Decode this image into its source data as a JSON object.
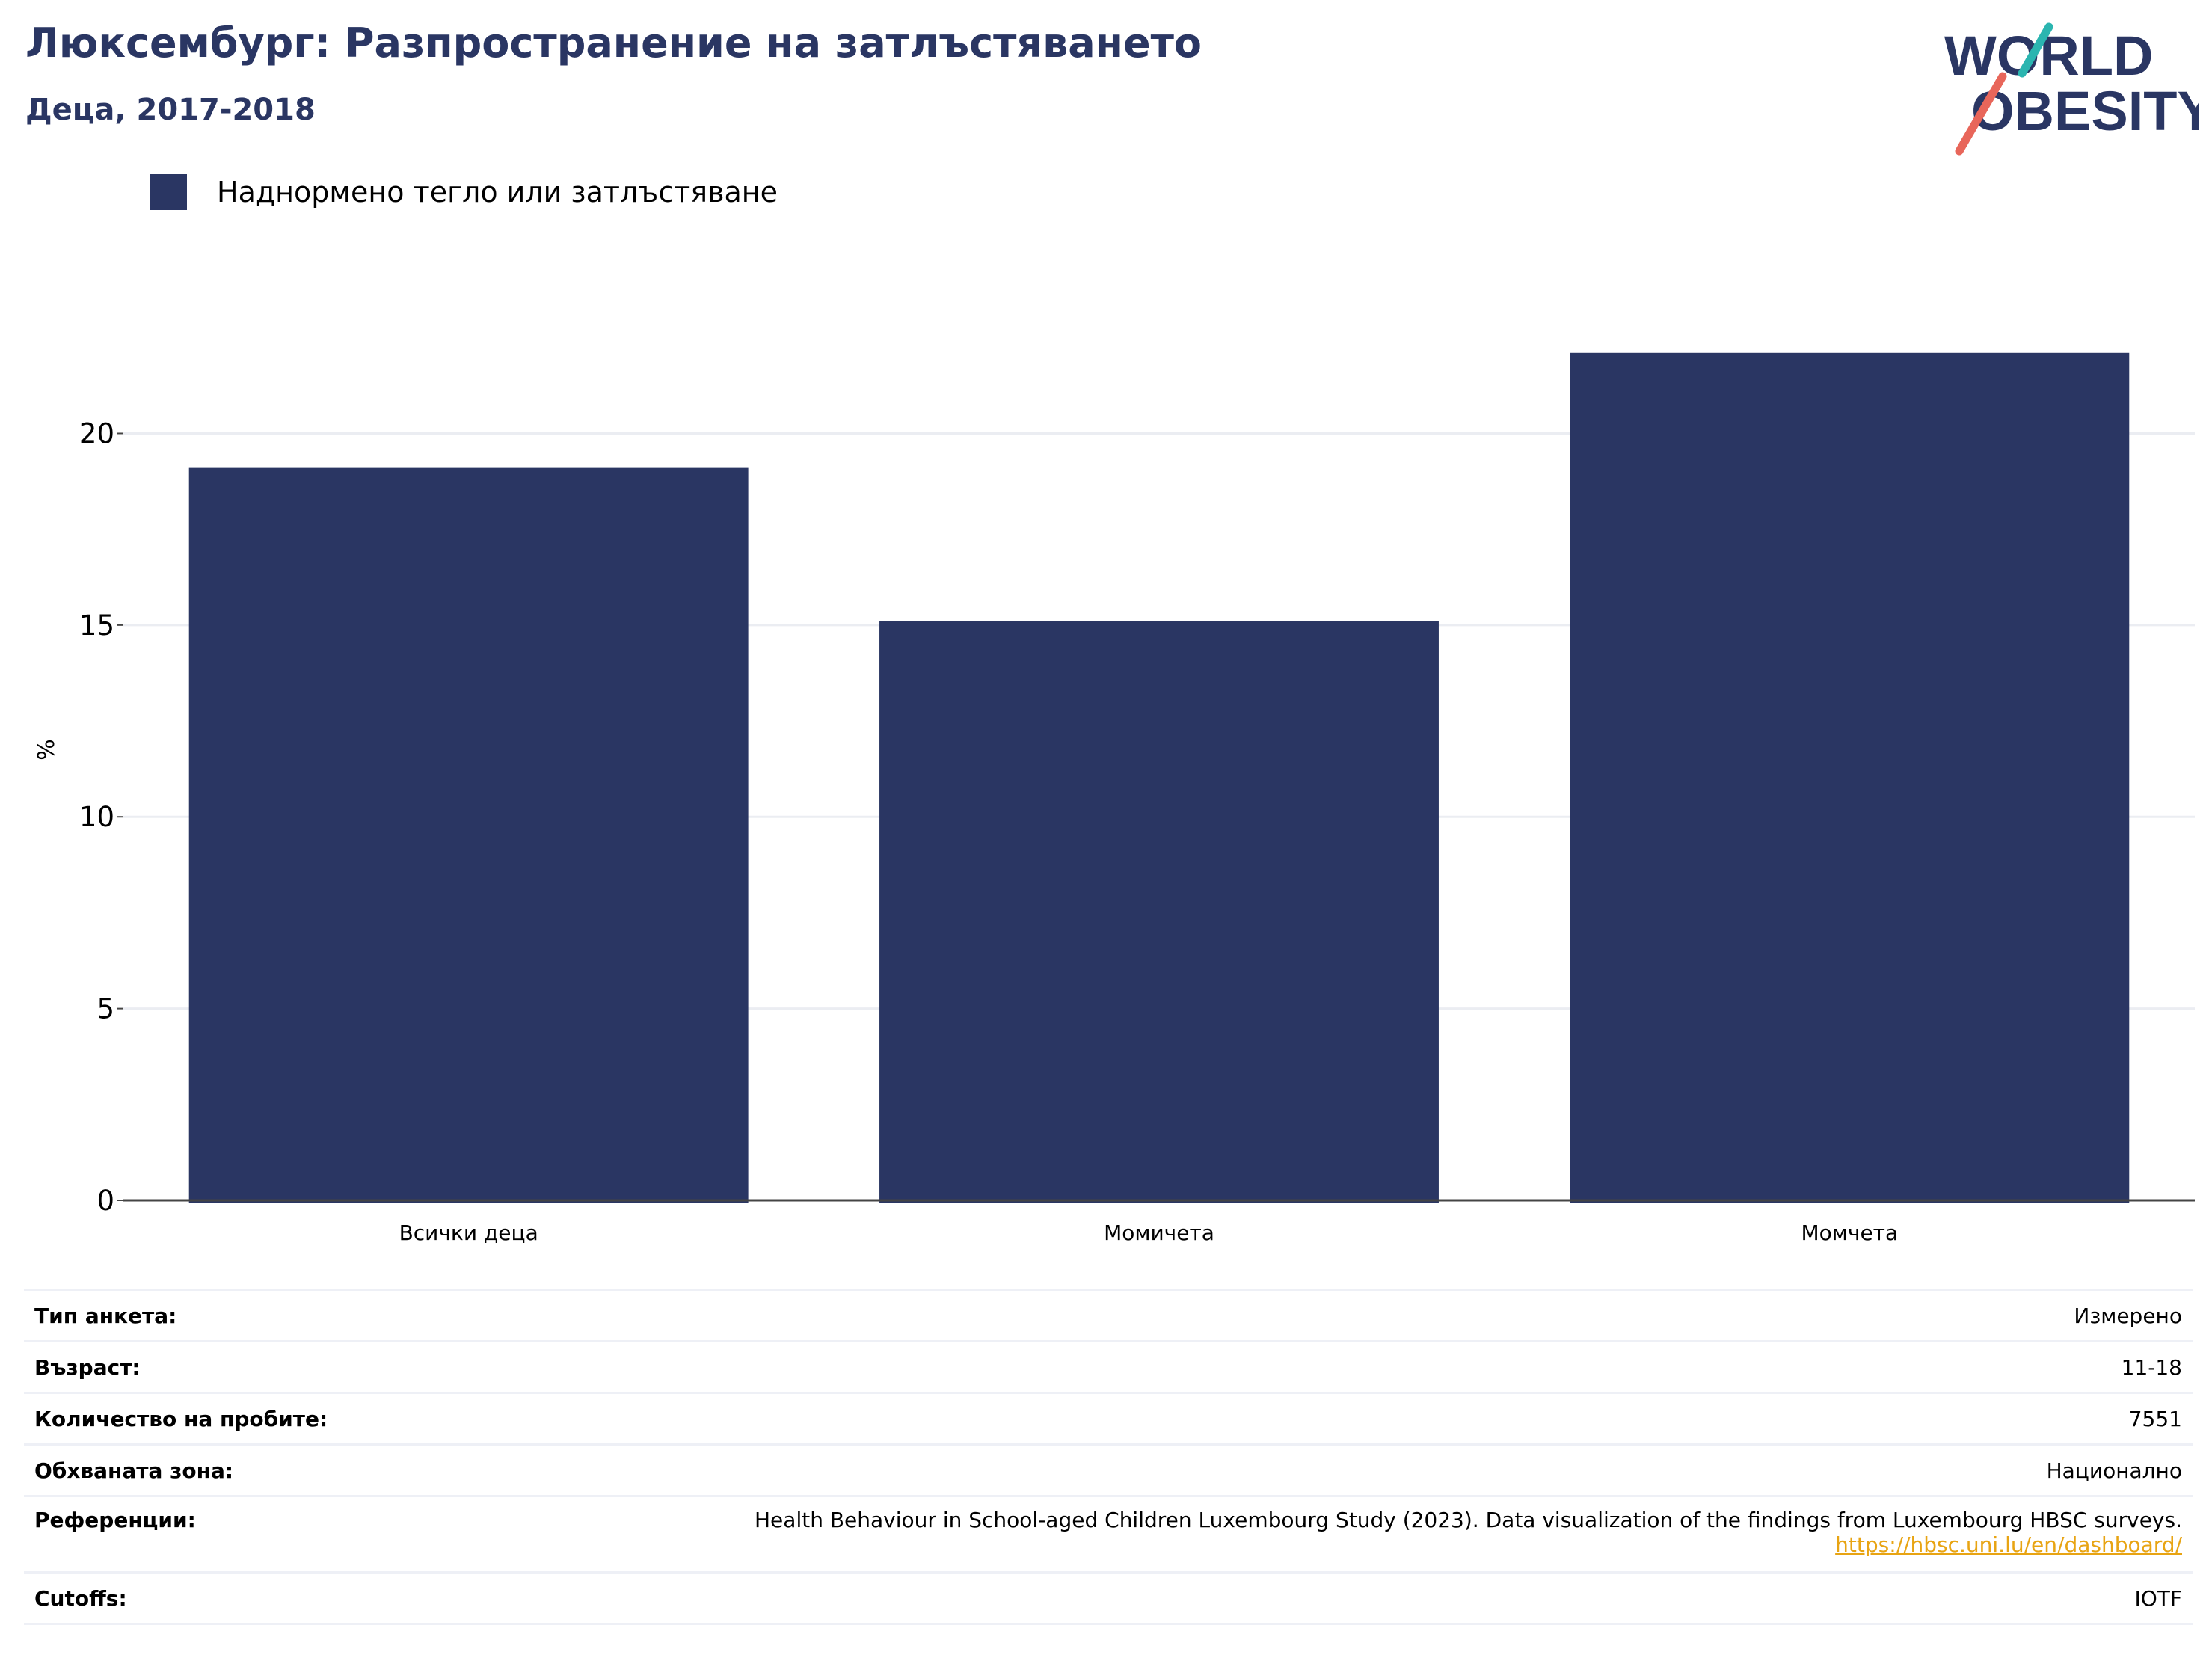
{
  "header": {
    "title": "Люксембург: Разпространение на затлъстяването",
    "subtitle": "Деца, 2017-2018"
  },
  "logo": {
    "line1": "WORLD",
    "line2": "OBESITY"
  },
  "legend": {
    "items": [
      {
        "label": "Наднормено тегло или затлъстяване",
        "color": "#2a3663"
      }
    ]
  },
  "chart_data": {
    "type": "bar",
    "categories": [
      "Всички деца",
      "Момичета",
      "Момчета"
    ],
    "series": [
      {
        "name": "Наднормено тегло или затлъстяване",
        "values": [
          19.1,
          15.1,
          22.1
        ],
        "color": "#2a3663"
      }
    ],
    "ylabel": "%",
    "ylim": [
      0,
      23.5
    ],
    "yticks": [
      0,
      5,
      10,
      15,
      20
    ],
    "grid": true,
    "legend_position": "top-left"
  },
  "meta": [
    {
      "key": "Тип анкета:",
      "value": "Измерено"
    },
    {
      "key": "Възраст:",
      "value": "11-18"
    },
    {
      "key": "Количество на пробите:",
      "value": "7551"
    },
    {
      "key": "Обхваната зона:",
      "value": "Национално"
    },
    {
      "key": "Референции:",
      "value": "Health Behaviour in School-aged Children Luxembourg Study (2023). Data visualization of the findings from Luxembourg HBSC surveys.",
      "link": "https://hbsc.uni.lu/en/dashboard/"
    },
    {
      "key": "Cutoffs:",
      "value": "IOTF"
    }
  ],
  "colors": {
    "primary": "#2a3663",
    "accent_teal": "#2bb5b0",
    "accent_coral": "#e8665a",
    "link": "#e8a413"
  }
}
